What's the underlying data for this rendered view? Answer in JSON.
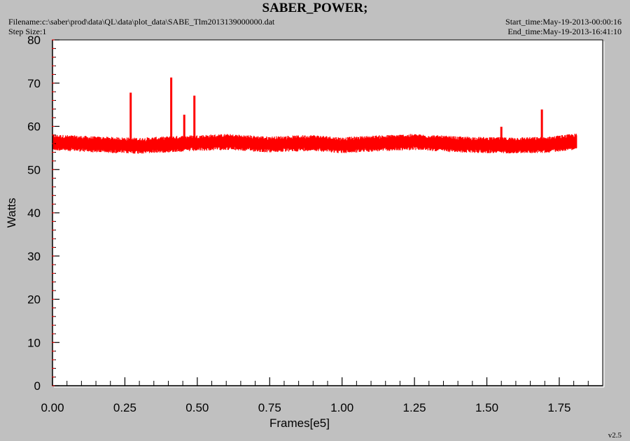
{
  "header": {
    "title": "SABER_POWER;",
    "filename": "Filename:c:\\saber\\prod\\data\\QL\\data\\plot_data\\SABE_Tlm2013139000000.dat",
    "step_size": "Step Size:1",
    "start_time": "Start_time:May-19-2013-00:00:16",
    "end_time": "End_time:May-19-2013-16:41:10"
  },
  "version": "v2.5",
  "colors": {
    "background": "#c0c0c0",
    "plot_area": "#ffffff",
    "series": "#ff0000",
    "axis": "#000000"
  },
  "chart_data": {
    "type": "line",
    "xlabel": "Frames[e5]",
    "ylabel": "Watts",
    "xlim": [
      0,
      1.9
    ],
    "ylim": [
      0,
      80
    ],
    "x_ticks": [
      "0.00",
      "0.25",
      "0.50",
      "0.75",
      "1.00",
      "1.25",
      "1.50",
      "1.75"
    ],
    "y_ticks": [
      "0",
      "10",
      "20",
      "30",
      "40",
      "50",
      "60",
      "70",
      "80"
    ],
    "grid": false,
    "series": [
      {
        "x_start": 0.0,
        "x_end": 1.81,
        "band_center": [
          [
            0.0,
            56.3
          ],
          [
            0.15,
            55.8
          ],
          [
            0.3,
            55.5
          ],
          [
            0.45,
            56.0
          ],
          [
            0.6,
            56.4
          ],
          [
            0.75,
            55.8
          ],
          [
            0.9,
            56.2
          ],
          [
            1.0,
            55.6
          ],
          [
            1.1,
            56.0
          ],
          [
            1.25,
            56.4
          ],
          [
            1.4,
            55.8
          ],
          [
            1.55,
            55.6
          ],
          [
            1.7,
            55.7
          ],
          [
            1.81,
            56.5
          ]
        ],
        "band_half_width": 1.7,
        "spikes": [
          {
            "x": 0.27,
            "y": 67.8
          },
          {
            "x": 0.41,
            "y": 71.3
          },
          {
            "x": 0.455,
            "y": 62.7
          },
          {
            "x": 0.49,
            "y": 67.1
          },
          {
            "x": 1.55,
            "y": 59.9
          },
          {
            "x": 1.69,
            "y": 63.9
          }
        ]
      }
    ]
  }
}
